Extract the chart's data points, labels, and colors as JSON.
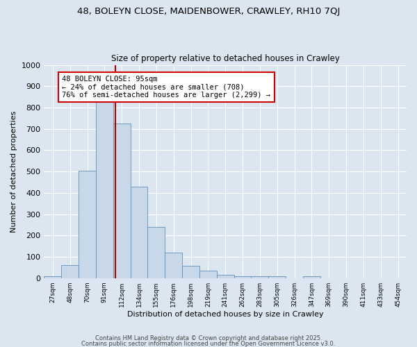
{
  "title1": "48, BOLEYN CLOSE, MAIDENBOWER, CRAWLEY, RH10 7QJ",
  "title2": "Size of property relative to detached houses in Crawley",
  "xlabel": "Distribution of detached houses by size in Crawley",
  "ylabel": "Number of detached properties",
  "bar_labels": [
    "27sqm",
    "48sqm",
    "70sqm",
    "91sqm",
    "112sqm",
    "134sqm",
    "155sqm",
    "176sqm",
    "198sqm",
    "219sqm",
    "241sqm",
    "262sqm",
    "283sqm",
    "305sqm",
    "326sqm",
    "347sqm",
    "369sqm",
    "390sqm",
    "411sqm",
    "433sqm",
    "454sqm"
  ],
  "bar_values": [
    10,
    60,
    505,
    830,
    725,
    428,
    240,
    120,
    57,
    35,
    15,
    10,
    10,
    10,
    0,
    8,
    0,
    0,
    0,
    0,
    0
  ],
  "bar_color": "#c8d8e8",
  "bar_edge_color": "#6090b8",
  "vline_x_index": 3.62,
  "vline_color": "#aa0000",
  "annotation_text": "48 BOLEYN CLOSE: 95sqm\n← 24% of detached houses are smaller (708)\n76% of semi-detached houses are larger (2,299) →",
  "annotation_box_facecolor": "#ffffff",
  "annotation_box_edgecolor": "#cc0000",
  "ylim": [
    0,
    1000
  ],
  "yticks": [
    0,
    100,
    200,
    300,
    400,
    500,
    600,
    700,
    800,
    900,
    1000
  ],
  "footer1": "Contains HM Land Registry data © Crown copyright and database right 2025.",
  "footer2": "Contains public sector information licensed under the Open Government Licence v3.0.",
  "background_color": "#dce6f0",
  "plot_background": "#dce6f0",
  "grid_color": "#ffffff",
  "title1_fontsize": 9.5,
  "title2_fontsize": 8.5,
  "xlabel_fontsize": 8,
  "ylabel_fontsize": 8,
  "xtick_fontsize": 6.5,
  "ytick_fontsize": 8,
  "annotation_fontsize": 7.5,
  "footer_fontsize": 6
}
